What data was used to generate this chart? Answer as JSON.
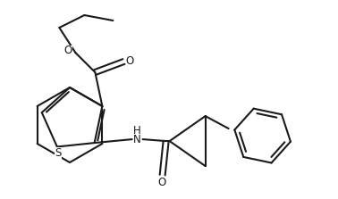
{
  "bg_color": "#ffffff",
  "line_color": "#1a1a1a",
  "line_width": 1.5,
  "fig_width": 3.78,
  "fig_height": 2.23,
  "dpi": 100,
  "atoms": {
    "S_label": "S",
    "O1_label": "O",
    "O2_label": "O",
    "O3_label": "O",
    "NH_label": "H\nN",
    "H_label": "H"
  }
}
